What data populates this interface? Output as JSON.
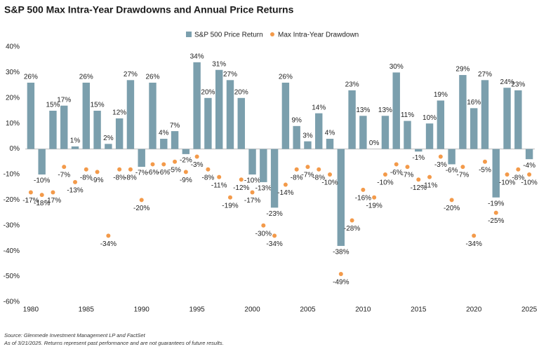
{
  "chart_data": {
    "type": "bar",
    "title": "S&P 500 Max Intra-Year Drawdowns and Annual Price Returns",
    "x": [
      1980,
      1981,
      1982,
      1983,
      1984,
      1985,
      1986,
      1987,
      1988,
      1989,
      1990,
      1991,
      1992,
      1993,
      1994,
      1995,
      1996,
      1997,
      1998,
      1999,
      2000,
      2001,
      2002,
      2003,
      2004,
      2005,
      2006,
      2007,
      2008,
      2009,
      2010,
      2011,
      2012,
      2013,
      2014,
      2015,
      2016,
      2017,
      2018,
      2019,
      2020,
      2021,
      2022,
      2023,
      2024,
      2025
    ],
    "series": [
      {
        "name": "S&P 500 Price Return",
        "type": "bar",
        "color": "#7b9fad",
        "values": [
          26,
          -10,
          15,
          17,
          1,
          26,
          15,
          2,
          12,
          27,
          -7,
          26,
          4,
          7,
          -2,
          34,
          20,
          31,
          27,
          20,
          -10,
          -13,
          -23,
          26,
          9,
          3,
          14,
          4,
          -38,
          23,
          13,
          0,
          13,
          30,
          11,
          -1,
          10,
          19,
          -6,
          29,
          16,
          27,
          -19,
          24,
          23,
          -4
        ],
        "value_labels": [
          "26%",
          "-10%",
          "15%",
          "17%",
          "1%",
          "26%",
          "15%",
          "2%",
          "12%",
          "27%",
          "-7%",
          "26%",
          "4%",
          "7%",
          "-2%",
          "34%",
          "20%",
          "31%",
          "27%",
          "20%",
          "-10%",
          "-13%",
          "-23%",
          "26%",
          "9%",
          "3%",
          "14%",
          "4%",
          "-38%",
          "23%",
          "13%",
          "0%",
          "13%",
          "30%",
          "11%",
          "-1%",
          "10%",
          "19%",
          "-6%",
          "29%",
          "16%",
          "27%",
          "-19%",
          "24%",
          "23%",
          "-4%"
        ]
      },
      {
        "name": "Max Intra-Year Drawdown",
        "type": "scatter",
        "color": "#f39a4a",
        "values": [
          -17,
          -18,
          -17,
          -7,
          -13,
          -8,
          -9,
          -34,
          -8,
          -8,
          -20,
          -6,
          -6,
          -5,
          -9,
          -3,
          -8,
          -11,
          -19,
          -12,
          -17,
          -30,
          -34,
          -14,
          -8,
          -7,
          -8,
          -10,
          -49,
          -28,
          -16,
          -19,
          -10,
          -6,
          -7,
          -12,
          -11,
          -3,
          -20,
          -7,
          -34,
          -5,
          -25,
          -10,
          -8,
          -10
        ],
        "value_labels": [
          "-17%",
          "-18%",
          "-17%",
          "-7%",
          "-13%",
          "-8%",
          "-9%",
          "-34%",
          "-8%",
          "-8%",
          "-20%",
          "-6%",
          "-6%",
          "-5%",
          "-9%",
          "-3%",
          "-8%",
          "-11%",
          "-19%",
          "-12%",
          "-17%",
          "-30%",
          "-34%",
          "-14%",
          "-8%",
          "-7%",
          "-8%",
          "-10%",
          "-49%",
          "-28%",
          "-16%",
          "-19%",
          "-10%",
          "-6%",
          "-7%",
          "-12%",
          "-11%",
          "-3%",
          "-20%",
          "-7%",
          "-34%",
          "-5%",
          "-25%",
          "-10%",
          "-8%",
          "-10%"
        ]
      }
    ],
    "xlim": [
      1979.5,
      2025.5
    ],
    "xticks": [
      1980,
      1985,
      1990,
      1995,
      2000,
      2005,
      2010,
      2015,
      2020,
      2025
    ],
    "ylim": [
      -60,
      40
    ],
    "yticks": [
      {
        "value": 40,
        "label": "40%"
      },
      {
        "value": 30,
        "label": "30%"
      },
      {
        "value": 20,
        "label": "20%"
      },
      {
        "value": 10,
        "label": "10%"
      },
      {
        "value": 0,
        "label": "0%"
      },
      {
        "value": -10,
        "label": "-10%"
      },
      {
        "value": -20,
        "label": "-20%"
      },
      {
        "value": -30,
        "label": "-30%"
      },
      {
        "value": -40,
        "label": "-40%"
      },
      {
        "value": -50,
        "label": "-50%"
      },
      {
        "value": -60,
        "label": "-60%"
      }
    ],
    "grid": false,
    "legend": "top",
    "notes": [
      "Source: Glenmede Investment Management LP and FactSet",
      "As of 3/21/2025. Returns represent past performance and are not guarantees of future results."
    ]
  }
}
